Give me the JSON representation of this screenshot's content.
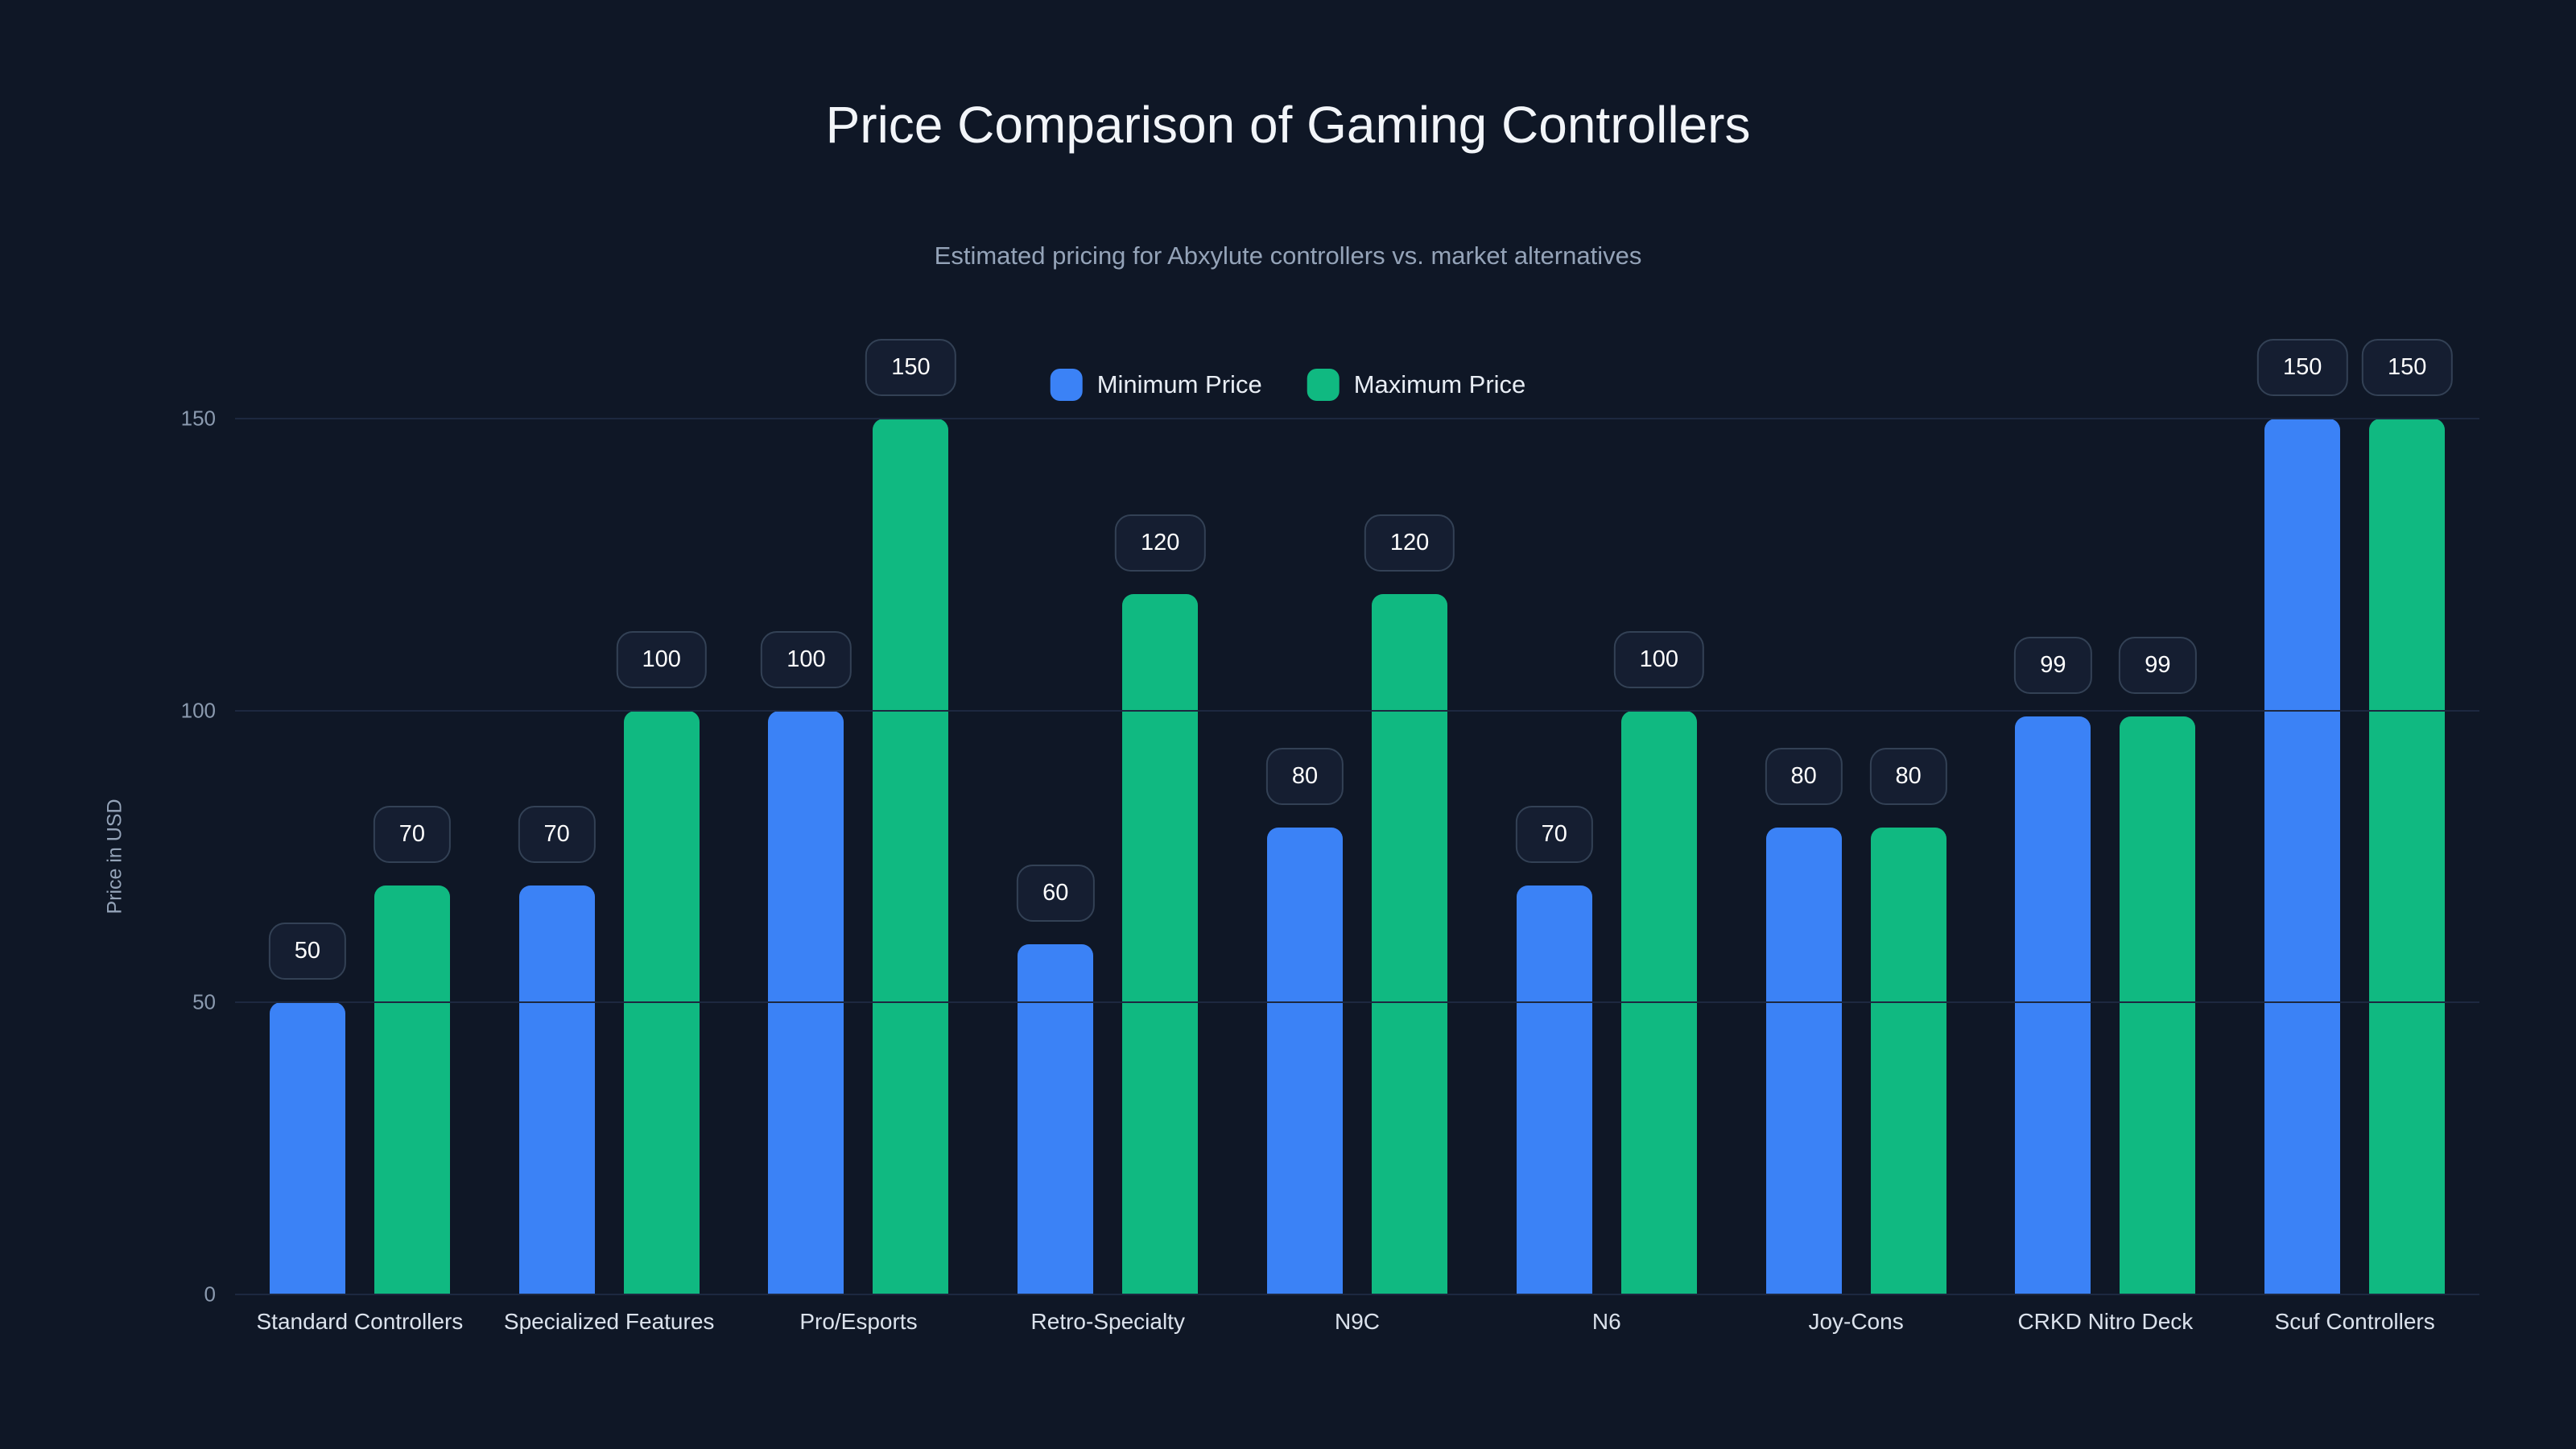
{
  "title": "Price Comparison of Gaming Controllers",
  "subtitle": "Estimated pricing for Abxylute controllers vs. market alternatives",
  "chart_data": {
    "type": "bar",
    "title": "Price Comparison of Gaming Controllers",
    "subtitle": "Estimated pricing for Abxylute controllers vs. market alternatives",
    "xlabel": "",
    "ylabel": "Price in USD",
    "ylim": [
      0,
      150
    ],
    "yticks": [
      0,
      50,
      100,
      150
    ],
    "grid": true,
    "legend_position": "top-center",
    "categories": [
      "Standard Controllers",
      "Specialized Features",
      "Pro/Esports",
      "Retro-Specialty",
      "N9C",
      "N6",
      "Joy-Cons",
      "CRKD Nitro Deck",
      "Scuf Controllers"
    ],
    "series": [
      {
        "name": "Minimum Price",
        "color": "#3b82f6",
        "values": [
          50,
          70,
          100,
          60,
          80,
          70,
          80,
          99,
          150
        ]
      },
      {
        "name": "Maximum Price",
        "color": "#10b981",
        "values": [
          70,
          100,
          150,
          120,
          120,
          100,
          80,
          99,
          150
        ]
      }
    ]
  },
  "colors": {
    "background": "#0f1726",
    "grid": "#1d2840",
    "badge_bg": "#151e31",
    "badge_border": "#334155",
    "min_bar": "#3b82f6",
    "max_bar": "#10b981",
    "title_text": "#f2f5f9",
    "subtitle_text": "#94a3b8",
    "tick_text": "#8b9aaf",
    "category_text": "#dbe2ec"
  }
}
